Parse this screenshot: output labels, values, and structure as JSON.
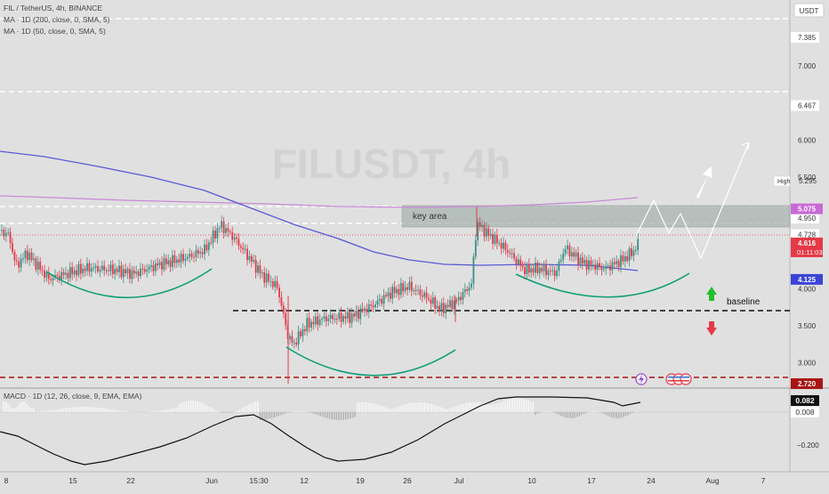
{
  "header": {
    "symbol_line": "FIL / TetherUS, 4h, BINANCE",
    "ma200_line": "MA · 1D (200, close, 0, SMA, 5)",
    "ma50_line": "MA · 1D (50, close, 0, SMA, 5)",
    "currency": "USDT",
    "watermark": "FILUSDT, 4h"
  },
  "macd": {
    "label": "MACD · 1D (12, 26, close, 9, EMA, EMA)",
    "value_macd": "0.082",
    "value_signal": "0.008",
    "axis_tick": "−0.200"
  },
  "annotations": {
    "key_area": "key area",
    "baseline": "baseline"
  },
  "price_axis": {
    "ticks": [
      "7.000",
      "6.000",
      "5.500",
      "4.000",
      "3.500",
      "3.000"
    ],
    "ticks_values": [
      7.0,
      6.0,
      5.5,
      4.0,
      3.5,
      3.0
    ],
    "level_labels": [
      {
        "text": "7.385",
        "value": 7.385
      },
      {
        "text": "6.467",
        "value": 6.467
      },
      {
        "text": "4.950",
        "value": 4.95
      },
      {
        "text": "4.728",
        "value": 4.728
      }
    ],
    "badges": [
      {
        "text": "5.075",
        "value": 5.075,
        "color": "#c86ad4"
      },
      {
        "text": "4.616",
        "value": 4.616,
        "color": "#e53947",
        "sub": "01:11:03"
      },
      {
        "text": "4.125",
        "value": 4.125,
        "color": "#3c44d6"
      },
      {
        "text": "2.720",
        "value": 2.72,
        "color": "#a81414"
      }
    ],
    "high_label": "High",
    "high_value": "5.295"
  },
  "time_axis": {
    "labels": [
      "8",
      "15",
      "22",
      "Jun",
      "15:30",
      "12",
      "19",
      "26",
      "Jul",
      "10",
      "17",
      "24",
      "Aug",
      "7"
    ]
  },
  "chart_data": {
    "type": "candlestick",
    "symbol": "FIL / TetherUS",
    "interval": "4h",
    "exchange": "BINANCE",
    "ylim": [
      2.72,
      7.5
    ],
    "x_ticks": [
      "8",
      "15",
      "22",
      "Jun",
      "15:30",
      "12",
      "19",
      "26",
      "Jul",
      "10",
      "17",
      "24",
      "Aug",
      "7"
    ],
    "x": [
      "8",
      "15",
      "22",
      "Jun",
      "12",
      "19",
      "26",
      "Jul",
      "10",
      "17",
      "24"
    ],
    "close": [
      4.55,
      4.2,
      4.25,
      4.7,
      3.4,
      3.6,
      3.8,
      4.8,
      4.2,
      4.35,
      4.6
    ],
    "current_price": 4.616,
    "horizontal_levels": [
      7.385,
      6.467,
      4.95,
      4.728,
      3.6,
      2.72
    ],
    "key_area": [
      4.6,
      4.95
    ],
    "baseline": 3.6,
    "ma200_1d_latest": 5.075,
    "ma50_1d_latest": 4.125,
    "high": 5.295,
    "macd_latest": 0.082,
    "signal_latest": 0.008
  },
  "colors": {
    "bull": "#3a8f86",
    "bear": "#e53947",
    "ma200": "#c98ad8",
    "ma50": "#5a5ad6",
    "arcs": "#109e77",
    "key_area_fill": "#a8b4b0"
  }
}
